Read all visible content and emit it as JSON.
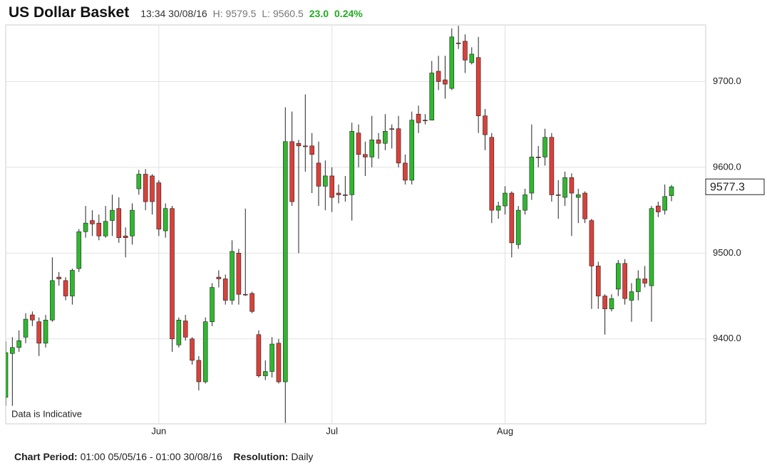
{
  "header": {
    "title": "US Dollar Basket",
    "time": "13:34 30/08/16",
    "high": "H: 9579.5",
    "low": "L: 9560.5",
    "change": "23.0",
    "change_pct": "0.24%"
  },
  "chart_data": {
    "type": "candlestick",
    "annotation": "Data is Indicative",
    "categories": [
      null,
      null,
      null,
      null,
      null,
      null,
      null,
      null,
      null,
      null,
      null,
      null,
      null,
      null,
      null,
      null,
      null,
      null,
      null,
      null,
      null,
      null,
      null,
      "Jun",
      null,
      null,
      null,
      null,
      null,
      null,
      null,
      null,
      null,
      null,
      null,
      null,
      null,
      null,
      null,
      null,
      null,
      null,
      null,
      null,
      null,
      null,
      null,
      null,
      null,
      "Jul",
      null,
      null,
      null,
      null,
      null,
      null,
      null,
      null,
      null,
      null,
      null,
      null,
      null,
      null,
      null,
      null,
      null,
      null,
      null,
      null,
      null,
      null,
      null,
      null,
      null,
      "Aug",
      null,
      null,
      null,
      null,
      null,
      null,
      null,
      null,
      null,
      null,
      null,
      null,
      null,
      null,
      null,
      null,
      null,
      null,
      null,
      null,
      null,
      null,
      null,
      null,
      null
    ],
    "open": [
      9332,
      9383,
      9390,
      9402,
      9428,
      9420,
      9395,
      9422,
      9472,
      9468,
      9450,
      9482,
      9525,
      9538,
      9535,
      9520,
      9538,
      9552,
      9520,
      9520,
      9575,
      9592,
      9590,
      9582,
      9526,
      9552,
      9393,
      9421,
      9400,
      9375,
      9350,
      9420,
      9472,
      9470,
      9445,
      9500,
      9452,
      9453,
      9405,
      9357,
      9362,
      9395,
      9350,
      9630,
      9628,
      9625,
      9625,
      9605,
      9578,
      9590,
      9570,
      9568,
      9568,
      9640,
      9615,
      9612,
      9632,
      9628,
      9645,
      9645,
      9605,
      9585,
      9662,
      9655,
      9655,
      9712,
      9702,
      9692,
      9745,
      9747,
      9722,
      9728,
      9660,
      9635,
      9550,
      9555,
      9570,
      9510,
      9550,
      9570,
      9612,
      9612,
      9635,
      9568,
      9565,
      9588,
      9565,
      9570,
      9538,
      9485,
      9450,
      9435,
      9458,
      9488,
      9445,
      9455,
      9470,
      9462,
      9555,
      9550,
      9567
    ],
    "high": [
      9397,
      9402,
      9410,
      9430,
      9432,
      9425,
      9428,
      9495,
      9478,
      9472,
      9482,
      9528,
      9555,
      9550,
      9545,
      9555,
      9568,
      9565,
      9530,
      9558,
      9597,
      9598,
      9592,
      9585,
      9558,
      9555,
      9425,
      9428,
      9402,
      9380,
      9425,
      9465,
      9480,
      9475,
      9515,
      9505,
      9552,
      9455,
      9410,
      9375,
      9402,
      9400,
      9670,
      9665,
      9632,
      9685,
      9640,
      9630,
      9608,
      9600,
      9580,
      9590,
      9652,
      9650,
      9630,
      9660,
      9640,
      9662,
      9650,
      9660,
      9615,
      9665,
      9672,
      9662,
      9724,
      9730,
      9730,
      9762,
      9765,
      9755,
      9740,
      9752,
      9668,
      9640,
      9560,
      9578,
      9572,
      9555,
      9575,
      9650,
      9625,
      9645,
      9640,
      9585,
      9595,
      9593,
      9575,
      9572,
      9540,
      9490,
      9452,
      9452,
      9492,
      9493,
      9465,
      9480,
      9485,
      9555,
      9560,
      9580,
      9579.5
    ],
    "low": [
      9322,
      9322,
      9385,
      9395,
      9415,
      9380,
      9390,
      9420,
      9462,
      9445,
      9440,
      9478,
      9518,
      9520,
      9515,
      9518,
      9520,
      9512,
      9495,
      9510,
      9568,
      9550,
      9545,
      9520,
      9518,
      9385,
      9390,
      9398,
      9370,
      9340,
      9348,
      9415,
      9460,
      9440,
      9440,
      9440,
      9450,
      9430,
      9355,
      9352,
      9355,
      9348,
      9302,
      9555,
      9500,
      9595,
      9570,
      9555,
      9550,
      9548,
      9558,
      9560,
      9538,
      9600,
      9590,
      9600,
      9610,
      9620,
      9622,
      9600,
      9580,
      9580,
      9640,
      9650,
      9655,
      9690,
      9680,
      9690,
      9738,
      9710,
      9720,
      9640,
      9620,
      9535,
      9540,
      9545,
      9495,
      9505,
      9545,
      9562,
      9600,
      9602,
      9560,
      9540,
      9555,
      9520,
      9535,
      9535,
      9435,
      9435,
      9405,
      9432,
      9450,
      9440,
      9420,
      9445,
      9460,
      9420,
      9542,
      9545,
      9560.5
    ],
    "close": [
      9384,
      9390,
      9398,
      9423,
      9422,
      9395,
      9422,
      9468,
      9470,
      9450,
      9480,
      9525,
      9535,
      9534,
      9520,
      9537,
      9550,
      9518,
      9518,
      9550,
      9592,
      9560,
      9560,
      9528,
      9552,
      9400,
      9422,
      9402,
      9375,
      9350,
      9420,
      9460,
      9470,
      9445,
      9502,
      9452,
      9452,
      9432,
      9357,
      9362,
      9394,
      9350,
      9630,
      9560,
      9625,
      9624,
      9615,
      9578,
      9590,
      9565,
      9568,
      9568,
      9642,
      9615,
      9612,
      9632,
      9628,
      9642,
      9645,
      9605,
      9585,
      9655,
      9652,
      9655,
      9710,
      9700,
      9697,
      9752,
      9745,
      9725,
      9732,
      9660,
      9638,
      9550,
      9555,
      9570,
      9512,
      9550,
      9568,
      9612,
      9612,
      9635,
      9568,
      9568,
      9588,
      9570,
      9568,
      9540,
      9485,
      9450,
      9435,
      9447,
      9488,
      9447,
      9455,
      9470,
      9465,
      9552,
      9548,
      9566,
      9577.3
    ],
    "up_color": "#2fb82f",
    "down_color": "#d9413a",
    "ylim": [
      9301,
      9766
    ],
    "yticks": [
      {
        "value": 9400,
        "label": "9400.0"
      },
      {
        "value": 9500,
        "label": "9500.0"
      },
      {
        "value": 9600,
        "label": "9600.0"
      },
      {
        "value": 9700,
        "label": "9700.0"
      }
    ],
    "grid": true
  },
  "footer": {
    "period_label": "Chart Period:",
    "period": "01:00 05/05/16 - 01:00 30/08/16",
    "resolution_label": "Resolution:",
    "resolution": "Daily"
  }
}
